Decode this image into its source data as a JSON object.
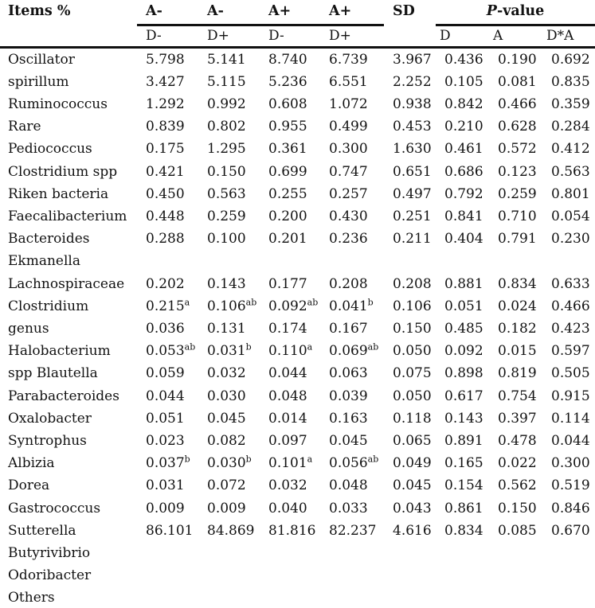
{
  "page": {
    "background_color": "#ffffff",
    "text_color": "#121212",
    "rule_color": "#111111"
  },
  "table": {
    "columns": {
      "items_label": "Items %",
      "group_headers": [
        {
          "top": "A-",
          "sub": "D-"
        },
        {
          "top": "A-",
          "sub": "D+"
        },
        {
          "top": "A+",
          "sub": "D-"
        },
        {
          "top": "A+",
          "sub": "D+"
        }
      ],
      "sd_label": "SD",
      "pvalue": {
        "prefix_italic": "P",
        "suffix": "-value",
        "sub_headers": [
          "D",
          "A",
          "D*A"
        ]
      }
    },
    "rows": [
      {
        "item": "Oscillator",
        "cells": [
          {
            "v": "5.798"
          },
          {
            "v": "5.141"
          },
          {
            "v": "8.740"
          },
          {
            "v": "6.739"
          },
          {
            "v": "3.967"
          },
          {
            "v": "0.436"
          },
          {
            "v": "0.190"
          },
          {
            "v": "0.692"
          }
        ]
      },
      {
        "item": "spirillum",
        "cells": [
          {
            "v": "3.427"
          },
          {
            "v": "5.115"
          },
          {
            "v": "5.236"
          },
          {
            "v": "6.551"
          },
          {
            "v": "2.252"
          },
          {
            "v": "0.105"
          },
          {
            "v": "0.081"
          },
          {
            "v": "0.835"
          }
        ]
      },
      {
        "item": "Ruminococcus",
        "cells": [
          {
            "v": "1.292"
          },
          {
            "v": "0.992"
          },
          {
            "v": "0.608"
          },
          {
            "v": "1.072"
          },
          {
            "v": "0.938"
          },
          {
            "v": "0.842"
          },
          {
            "v": "0.466"
          },
          {
            "v": "0.359"
          }
        ]
      },
      {
        "item": "Rare",
        "cells": [
          {
            "v": "0.839"
          },
          {
            "v": "0.802"
          },
          {
            "v": "0.955"
          },
          {
            "v": "0.499"
          },
          {
            "v": "0.453"
          },
          {
            "v": "0.210"
          },
          {
            "v": "0.628"
          },
          {
            "v": "0.284"
          }
        ]
      },
      {
        "item": "Pediococcus",
        "cells": [
          {
            "v": "0.175"
          },
          {
            "v": "1.295"
          },
          {
            "v": "0.361"
          },
          {
            "v": "0.300"
          },
          {
            "v": "1.630"
          },
          {
            "v": "0.461"
          },
          {
            "v": "0.572"
          },
          {
            "v": "0.412"
          }
        ]
      },
      {
        "item": "Clostridium spp",
        "cells": [
          {
            "v": "0.421"
          },
          {
            "v": "0.150"
          },
          {
            "v": "0.699"
          },
          {
            "v": "0.747"
          },
          {
            "v": "0.651"
          },
          {
            "v": "0.686"
          },
          {
            "v": "0.123"
          },
          {
            "v": "0.563"
          }
        ]
      },
      {
        "item": "Riken bacteria",
        "cells": [
          {
            "v": "0.450"
          },
          {
            "v": "0.563"
          },
          {
            "v": "0.255"
          },
          {
            "v": "0.257"
          },
          {
            "v": "0.497"
          },
          {
            "v": "0.792"
          },
          {
            "v": "0.259"
          },
          {
            "v": "0.801"
          }
        ]
      },
      {
        "item": "Faecalibacterium",
        "cells": [
          {
            "v": "0.448"
          },
          {
            "v": "0.259"
          },
          {
            "v": "0.200"
          },
          {
            "v": "0.430"
          },
          {
            "v": "0.251"
          },
          {
            "v": "0.841"
          },
          {
            "v": "0.710"
          },
          {
            "v": "0.054"
          }
        ]
      },
      {
        "item": "Bacteroides",
        "cells": [
          {
            "v": "0.288"
          },
          {
            "v": "0.100"
          },
          {
            "v": "0.201"
          },
          {
            "v": "0.236"
          },
          {
            "v": "0.211"
          },
          {
            "v": "0.404"
          },
          {
            "v": "0.791"
          },
          {
            "v": "0.230"
          }
        ]
      },
      {
        "item": "Ekmanella",
        "cells": []
      },
      {
        "item": "Lachnospiraceae",
        "cells": [
          {
            "v": "0.202"
          },
          {
            "v": "0.143"
          },
          {
            "v": "0.177"
          },
          {
            "v": "0.208"
          },
          {
            "v": "0.208"
          },
          {
            "v": "0.881"
          },
          {
            "v": "0.834"
          },
          {
            "v": "0.633"
          }
        ]
      },
      {
        "item": "Clostridium",
        "cells": [
          {
            "v": "0.215",
            "sup": "a"
          },
          {
            "v": "0.106",
            "sup": "ab"
          },
          {
            "v": "0.092",
            "sup": "ab"
          },
          {
            "v": "0.041",
            "sup": "b"
          },
          {
            "v": "0.106"
          },
          {
            "v": "0.051"
          },
          {
            "v": "0.024"
          },
          {
            "v": "0.466"
          }
        ]
      },
      {
        "item": "genus",
        "cells": [
          {
            "v": "0.036"
          },
          {
            "v": "0.131"
          },
          {
            "v": "0.174"
          },
          {
            "v": "0.167"
          },
          {
            "v": "0.150"
          },
          {
            "v": "0.485"
          },
          {
            "v": "0.182"
          },
          {
            "v": "0.423"
          }
        ]
      },
      {
        "item": "Halobacterium",
        "cells": [
          {
            "v": "0.053",
            "sup": "ab"
          },
          {
            "v": "0.031",
            "sup": "b"
          },
          {
            "v": "0.110",
            "sup": "a"
          },
          {
            "v": "0.069",
            "sup": "ab"
          },
          {
            "v": "0.050"
          },
          {
            "v": "0.092"
          },
          {
            "v": "0.015"
          },
          {
            "v": "0.597"
          }
        ]
      },
      {
        "item": "spp Blautella",
        "cells": [
          {
            "v": "0.059"
          },
          {
            "v": "0.032"
          },
          {
            "v": "0.044"
          },
          {
            "v": "0.063"
          },
          {
            "v": "0.075"
          },
          {
            "v": "0.898"
          },
          {
            "v": "0.819"
          },
          {
            "v": "0.505"
          }
        ]
      },
      {
        "item": "Parabacteroides",
        "cells": [
          {
            "v": "0.044"
          },
          {
            "v": "0.030"
          },
          {
            "v": "0.048"
          },
          {
            "v": "0.039"
          },
          {
            "v": "0.050"
          },
          {
            "v": "0.617"
          },
          {
            "v": "0.754"
          },
          {
            "v": "0.915"
          }
        ]
      },
      {
        "item": "Oxalobacter",
        "cells": [
          {
            "v": "0.051"
          },
          {
            "v": "0.045"
          },
          {
            "v": "0.014"
          },
          {
            "v": "0.163"
          },
          {
            "v": "0.118"
          },
          {
            "v": "0.143"
          },
          {
            "v": "0.397"
          },
          {
            "v": "0.114"
          }
        ]
      },
      {
        "item": "Syntrophus",
        "cells": [
          {
            "v": "0.023"
          },
          {
            "v": "0.082"
          },
          {
            "v": "0.097"
          },
          {
            "v": "0.045"
          },
          {
            "v": "0.065"
          },
          {
            "v": "0.891"
          },
          {
            "v": "0.478"
          },
          {
            "v": "0.044"
          }
        ]
      },
      {
        "item": "Albizia",
        "cells": [
          {
            "v": "0.037",
            "sup": "b"
          },
          {
            "v": "0.030",
            "sup": "b"
          },
          {
            "v": "0.101",
            "sup": "a"
          },
          {
            "v": "0.056",
            "sup": "ab"
          },
          {
            "v": "0.049"
          },
          {
            "v": "0.165"
          },
          {
            "v": "0.022"
          },
          {
            "v": "0.300"
          }
        ]
      },
      {
        "item": "Dorea",
        "cells": [
          {
            "v": "0.031"
          },
          {
            "v": "0.072"
          },
          {
            "v": "0.032"
          },
          {
            "v": "0.048"
          },
          {
            "v": "0.045"
          },
          {
            "v": "0.154"
          },
          {
            "v": "0.562"
          },
          {
            "v": "0.519"
          }
        ]
      },
      {
        "item": "Gastrococcus",
        "cells": [
          {
            "v": "0.009"
          },
          {
            "v": "0.009"
          },
          {
            "v": "0.040"
          },
          {
            "v": "0.033"
          },
          {
            "v": "0.043"
          },
          {
            "v": "0.861"
          },
          {
            "v": "0.150"
          },
          {
            "v": "0.846"
          }
        ]
      },
      {
        "item": "Sutterella",
        "cells": [
          {
            "v": "86.101"
          },
          {
            "v": "84.869"
          },
          {
            "v": "81.816"
          },
          {
            "v": "82.237"
          },
          {
            "v": "4.616"
          },
          {
            "v": "0.834"
          },
          {
            "v": "0.085"
          },
          {
            "v": "0.670"
          }
        ]
      },
      {
        "item": "Butyrivibrio",
        "cells": []
      },
      {
        "item": "Odoribacter",
        "cells": []
      },
      {
        "item": "Others",
        "cells": []
      }
    ]
  }
}
